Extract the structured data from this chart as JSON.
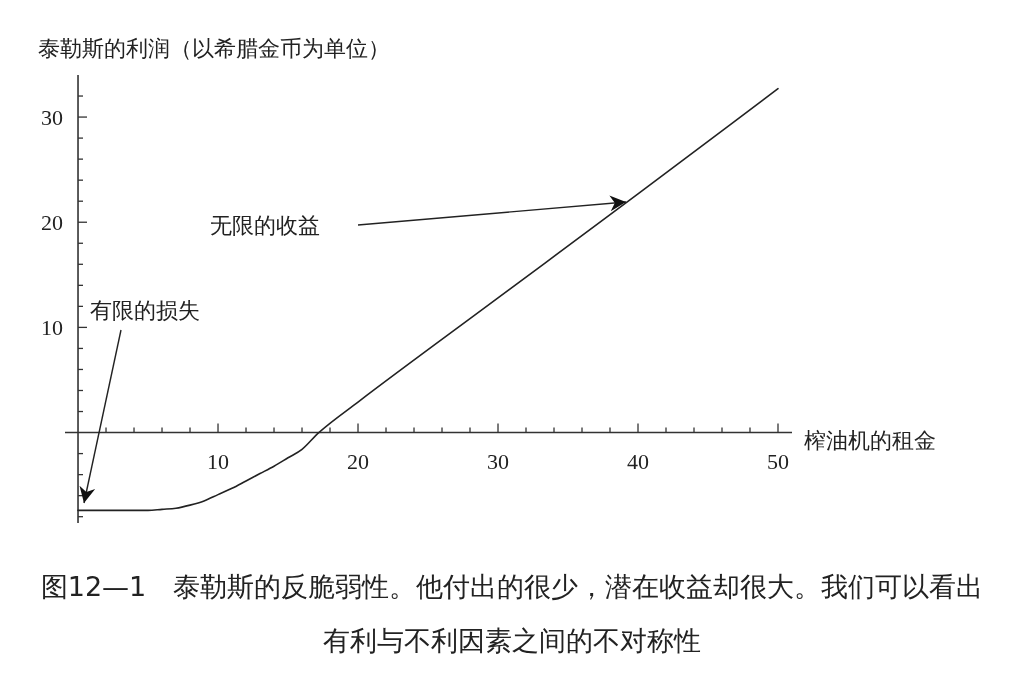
{
  "chart_data": {
    "type": "line",
    "ylabel": "泰勒斯的利润（以希腊金币为单位）",
    "xlabel": "榨油机的租金",
    "x": [
      0,
      2,
      4,
      5,
      6,
      7,
      8,
      9,
      10,
      11,
      12,
      13,
      14,
      15,
      16,
      17.2,
      20,
      30,
      40,
      50
    ],
    "series": [
      {
        "color": "#222222",
        "values": [
          -7.4,
          -7.4,
          -7.4,
          -7.4,
          -7.3,
          -7.2,
          -6.9,
          -6.5,
          -5.9,
          -5.3,
          -4.6,
          -3.9,
          -3.2,
          -2.4,
          -1.6,
          0,
          2.9,
          12.8,
          22.7,
          32.7
        ]
      }
    ],
    "xlim": [
      -0.93,
      51
    ],
    "ylim": [
      -8.6,
      34
    ],
    "xticks": [
      {
        "value": 2,
        "label": null
      },
      {
        "value": 4,
        "label": null
      },
      {
        "value": 6,
        "label": null
      },
      {
        "value": 8,
        "label": null
      },
      10,
      {
        "value": 12,
        "label": null
      },
      {
        "value": 14,
        "label": null
      },
      {
        "value": 16,
        "label": null
      },
      {
        "value": 18,
        "label": null
      },
      20,
      {
        "value": 22,
        "label": null
      },
      {
        "value": 24,
        "label": null
      },
      {
        "value": 26,
        "label": null
      },
      {
        "value": 28,
        "label": null
      },
      30,
      {
        "value": 32,
        "label": null
      },
      {
        "value": 34,
        "label": null
      },
      {
        "value": 36,
        "label": null
      },
      {
        "value": 38,
        "label": null
      },
      40,
      {
        "value": 42,
        "label": null
      },
      {
        "value": 44,
        "label": null
      },
      {
        "value": 46,
        "label": null
      },
      {
        "value": 48,
        "label": null
      },
      50
    ],
    "yticks": [
      {
        "value": -8,
        "label": null
      },
      {
        "value": -6,
        "label": null
      },
      {
        "value": -4,
        "label": null
      },
      {
        "value": -2,
        "label": null
      },
      {
        "value": 2,
        "label": null
      },
      {
        "value": 4,
        "label": null
      },
      {
        "value": 6,
        "label": null
      },
      {
        "value": 8,
        "label": null
      },
      10,
      {
        "value": 12,
        "label": null
      },
      {
        "value": 14,
        "label": null
      },
      {
        "value": 16,
        "label": null
      },
      {
        "value": 18,
        "label": null
      },
      20,
      {
        "value": 22,
        "label": null
      },
      {
        "value": 24,
        "label": null
      },
      {
        "value": 26,
        "label": null
      },
      {
        "value": 28,
        "label": null
      },
      30,
      {
        "value": 32,
        "label": null
      }
    ],
    "annotations": [
      "无限的收益",
      "有限的损失",
      "图12—1　泰勒斯的反脆弱性。他付出的很少，潜在收益却很大。我们可以看出有利与不利因素之间的不对称性"
    ]
  }
}
